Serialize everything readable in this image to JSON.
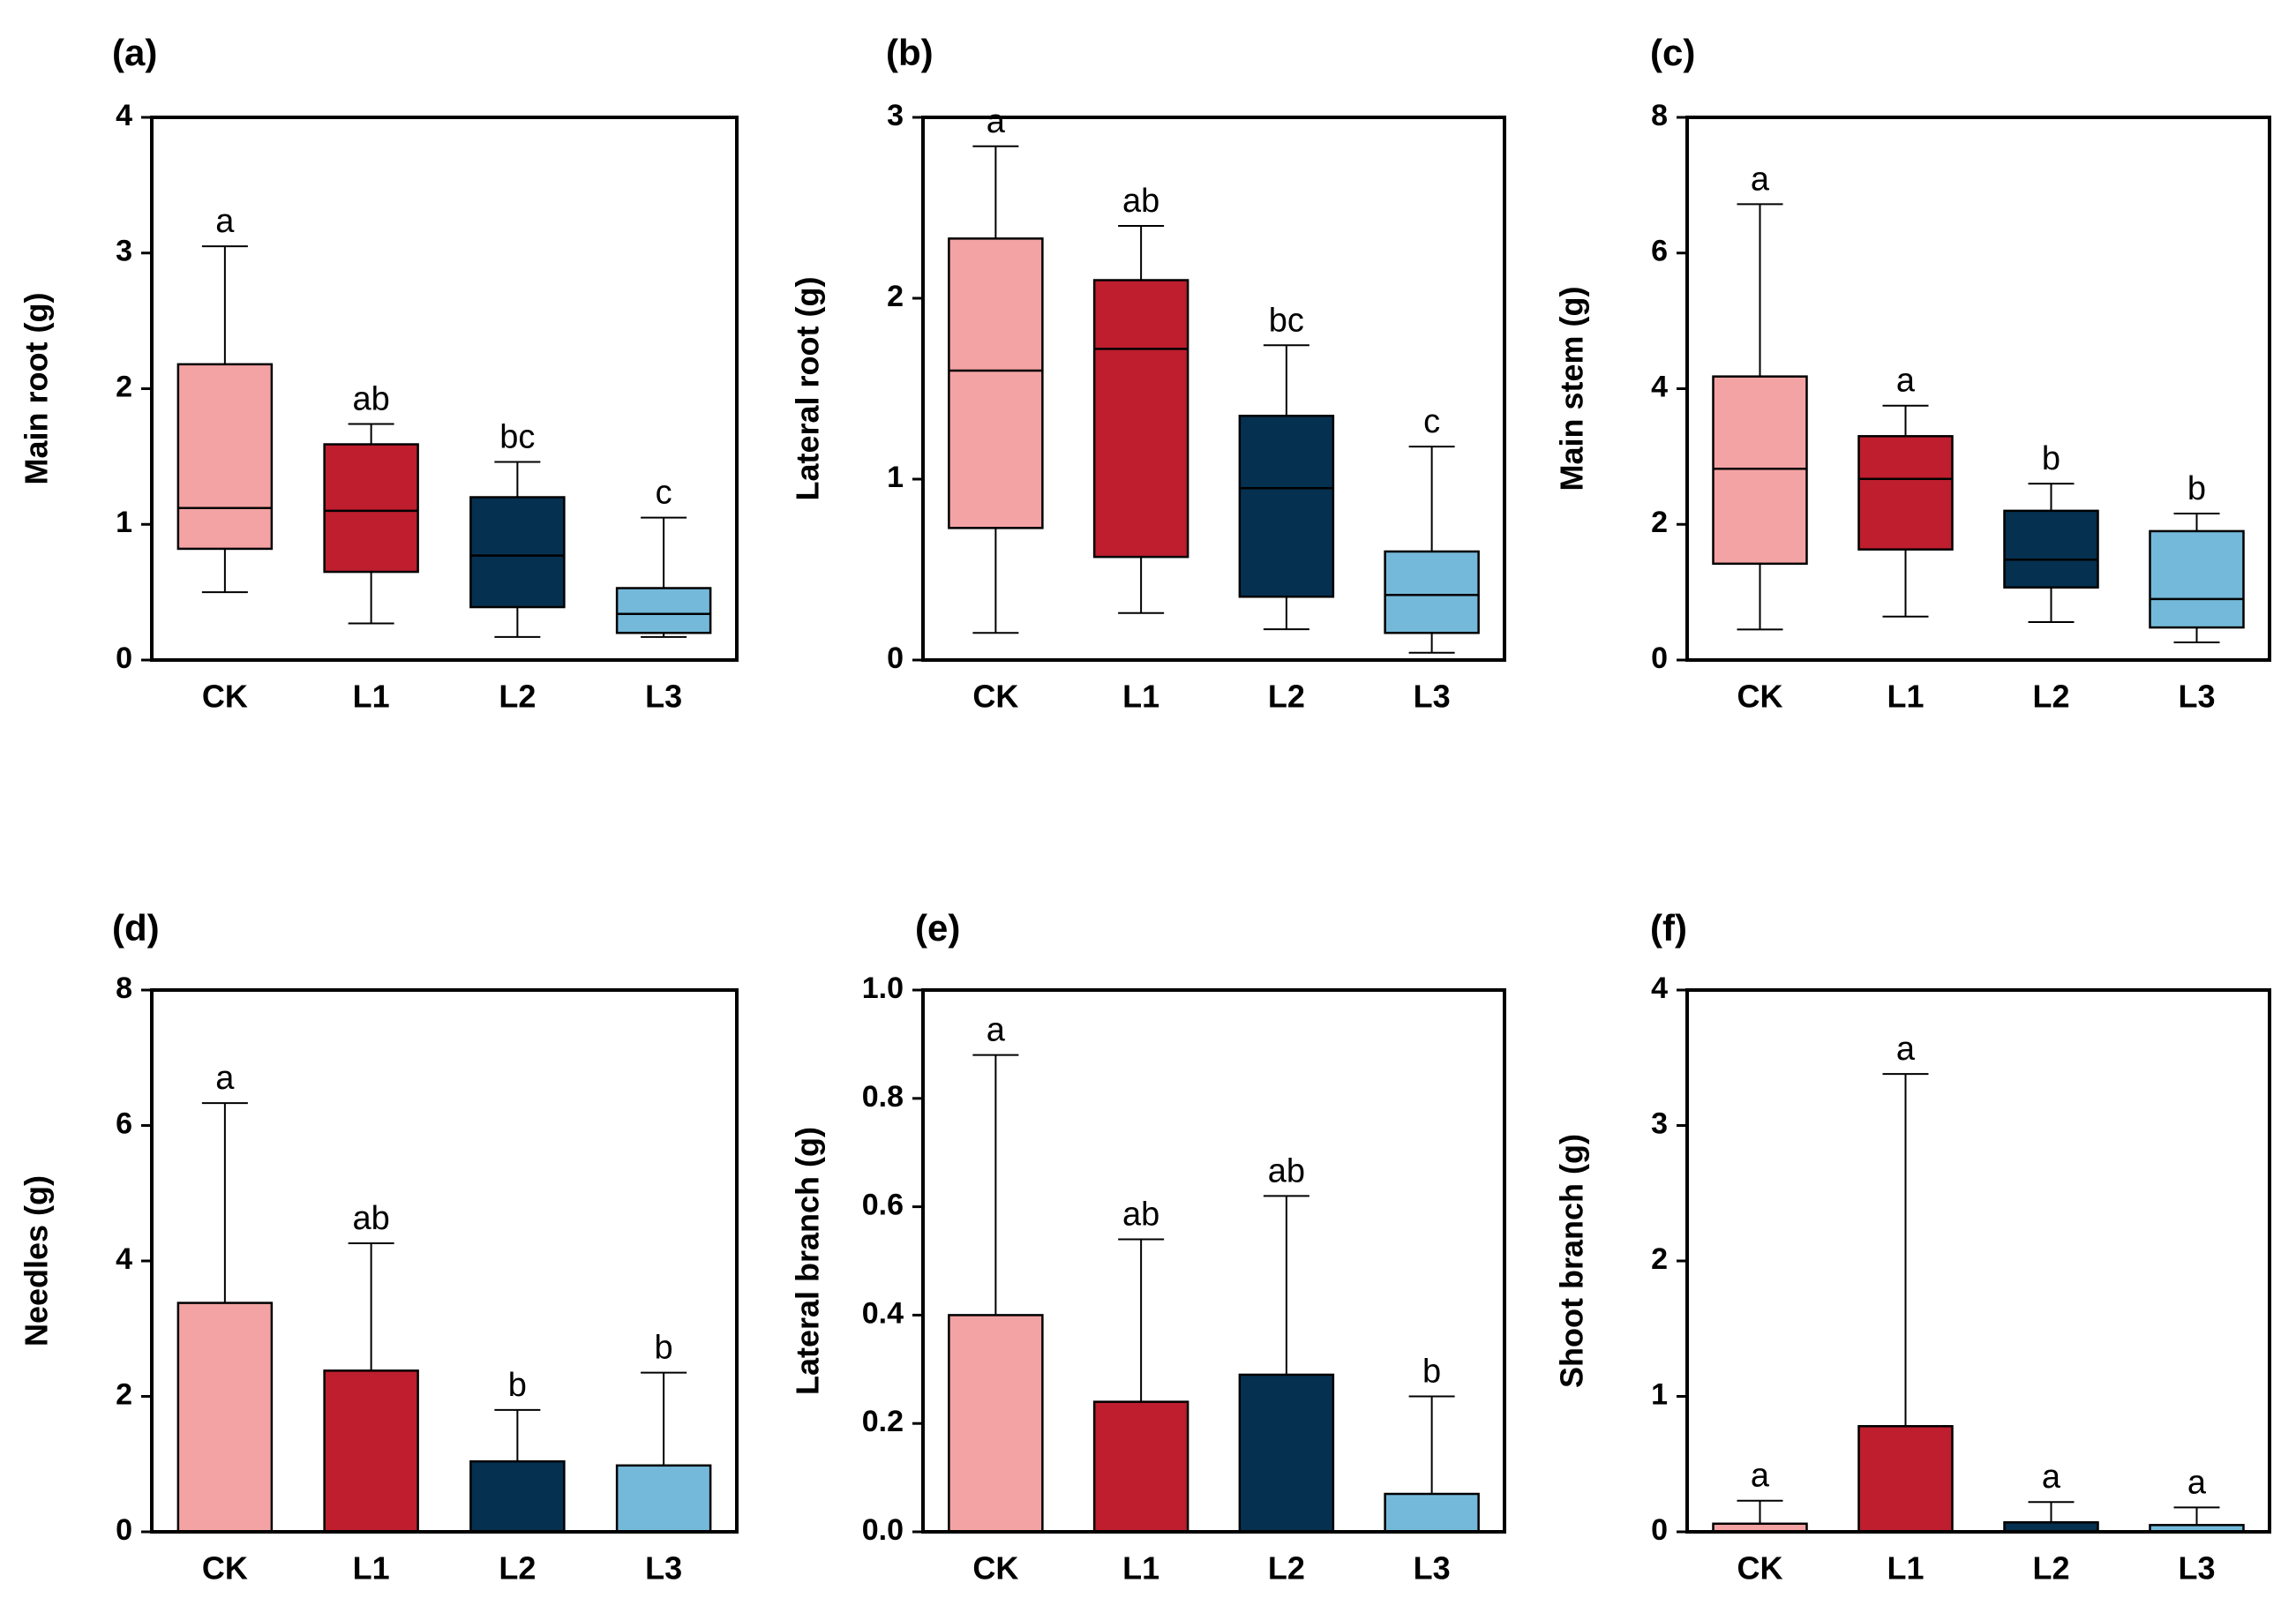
{
  "colors": {
    "CK": "#f4a3a4",
    "L1": "#be1e2d",
    "L2": "#053050",
    "L3": "#74b9d9",
    "axis": "#000000"
  },
  "chart_data": [
    {
      "panel": "(a)",
      "type": "box",
      "ylabel": "Main root (g)",
      "ylim": [
        0,
        4
      ],
      "yticks": [
        "0",
        "1",
        "2",
        "3",
        "4"
      ],
      "categories": [
        "CK",
        "L1",
        "L2",
        "L3"
      ],
      "boxes": [
        {
          "min": 0.5,
          "q1": 0.82,
          "median": 1.12,
          "q3": 2.18,
          "max": 3.05
        },
        {
          "min": 0.27,
          "q1": 0.65,
          "median": 1.1,
          "q3": 1.59,
          "max": 1.74
        },
        {
          "min": 0.17,
          "q1": 0.39,
          "median": 0.77,
          "q3": 1.2,
          "max": 1.46
        },
        {
          "min": 0.17,
          "q1": 0.2,
          "median": 0.34,
          "q3": 0.53,
          "max": 1.05
        }
      ],
      "letters": [
        "a",
        "ab",
        "bc",
        "c"
      ]
    },
    {
      "panel": "(b)",
      "type": "box",
      "ylabel": "Lateral root (g)",
      "ylim": [
        0,
        3
      ],
      "yticks": [
        "0",
        "1",
        "2",
        "3"
      ],
      "categories": [
        "CK",
        "L1",
        "L2",
        "L3"
      ],
      "boxes": [
        {
          "min": 0.15,
          "q1": 0.73,
          "median": 1.6,
          "q3": 2.33,
          "max": 2.84
        },
        {
          "min": 0.26,
          "q1": 0.57,
          "median": 1.72,
          "q3": 2.1,
          "max": 2.4
        },
        {
          "min": 0.17,
          "q1": 0.35,
          "median": 0.95,
          "q3": 1.35,
          "max": 1.74
        },
        {
          "min": 0.04,
          "q1": 0.15,
          "median": 0.36,
          "q3": 0.6,
          "max": 1.18
        }
      ],
      "letters": [
        "a",
        "ab",
        "bc",
        "c"
      ]
    },
    {
      "panel": "(c)",
      "type": "box",
      "ylabel": "Main stem (g)",
      "ylim": [
        0,
        8
      ],
      "yticks": [
        "0",
        "2",
        "4",
        "6",
        "8"
      ],
      "categories": [
        "CK",
        "L1",
        "L2",
        "L3"
      ],
      "boxes": [
        {
          "min": 0.45,
          "q1": 1.42,
          "median": 2.82,
          "q3": 4.18,
          "max": 6.72
        },
        {
          "min": 0.64,
          "q1": 1.63,
          "median": 2.67,
          "q3": 3.3,
          "max": 3.75
        },
        {
          "min": 0.56,
          "q1": 1.07,
          "median": 1.48,
          "q3": 2.2,
          "max": 2.6
        },
        {
          "min": 0.26,
          "q1": 0.48,
          "median": 0.9,
          "q3": 1.9,
          "max": 2.16
        }
      ],
      "letters": [
        "a",
        "a",
        "b",
        "b"
      ]
    },
    {
      "panel": "(d)",
      "type": "bar",
      "ylabel": "Needles (g)",
      "ylim": [
        0,
        8
      ],
      "yticks": [
        "0",
        "2",
        "4",
        "6",
        "8"
      ],
      "categories": [
        "CK",
        "L1",
        "L2",
        "L3"
      ],
      "values": [
        3.38,
        2.38,
        1.04,
        0.98
      ],
      "error_upper": [
        6.33,
        4.26,
        1.8,
        2.35
      ],
      "letters": [
        "a",
        "ab",
        "b",
        "b"
      ]
    },
    {
      "panel": "(e)",
      "type": "bar",
      "ylabel": "Lateral branch (g)",
      "ylim": [
        0,
        1.0
      ],
      "yticks": [
        "0.0",
        "0.2",
        "0.4",
        "0.6",
        "0.8",
        "1.0"
      ],
      "categories": [
        "CK",
        "L1",
        "L2",
        "L3"
      ],
      "values": [
        0.4,
        0.24,
        0.29,
        0.07
      ],
      "error_upper": [
        0.88,
        0.54,
        0.62,
        0.25
      ],
      "letters": [
        "a",
        "ab",
        "ab",
        "b"
      ]
    },
    {
      "panel": "(f)",
      "type": "bar",
      "ylabel": "Shoot branch (g)",
      "ylim": [
        0,
        4
      ],
      "yticks": [
        "0",
        "1",
        "2",
        "3",
        "4"
      ],
      "categories": [
        "CK",
        "L1",
        "L2",
        "L3"
      ],
      "values": [
        0.06,
        0.78,
        0.07,
        0.05
      ],
      "error_upper": [
        0.23,
        3.38,
        0.22,
        0.18
      ],
      "letters": [
        "a",
        "a",
        "a",
        "a"
      ]
    }
  ]
}
